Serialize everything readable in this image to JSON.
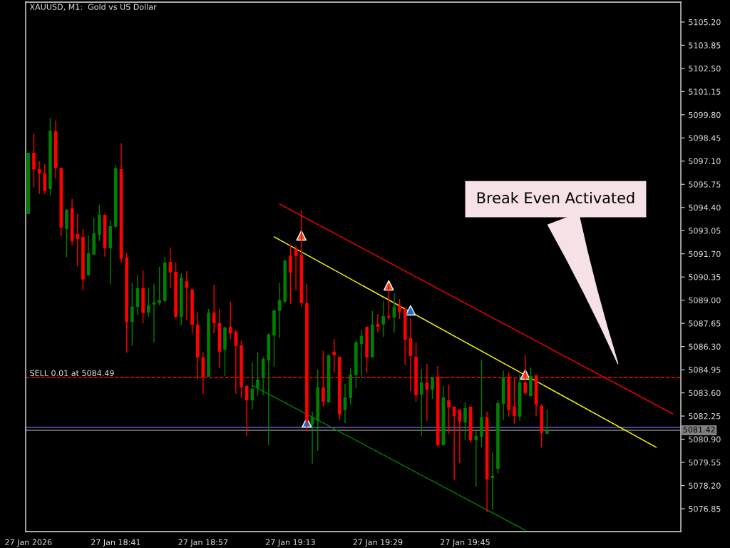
{
  "chart_data": {
    "type": "candlestick",
    "title": "XAUUSD, M1:  Gold vs US Dollar",
    "categories": [
      "27 Jan 2026",
      null,
      null,
      null,
      null,
      null,
      null,
      null,
      null,
      null,
      null,
      null,
      null,
      null,
      null,
      null,
      "27 Jan 18:41",
      null,
      null,
      null,
      null,
      null,
      null,
      null,
      null,
      null,
      null,
      null,
      null,
      null,
      null,
      null,
      "27 Jan 18:57",
      null,
      null,
      null,
      null,
      null,
      null,
      null,
      null,
      null,
      null,
      null,
      null,
      null,
      null,
      null,
      "27 Jan 19:13",
      null,
      null,
      null,
      null,
      null,
      null,
      null,
      null,
      null,
      null,
      null,
      null,
      null,
      null,
      null,
      "27 Jan 19:29",
      null,
      null,
      null,
      null,
      null,
      null,
      null,
      null,
      null,
      null,
      null,
      null,
      null,
      null,
      null,
      "27 Jan 19:45",
      null,
      null,
      null,
      null,
      null,
      null,
      null,
      null,
      null,
      null,
      null,
      null,
      null,
      null,
      null,
      null,
      null,
      null,
      null,
      null,
      null,
      null,
      null,
      null,
      null,
      null,
      null,
      null,
      null,
      null,
      null,
      null,
      null,
      null,
      null,
      null,
      null,
      null,
      null
    ],
    "ohlc": [
      [
        5094.02,
        5097.59,
        5094.02,
        5097.59
      ],
      [
        5097.59,
        5098.69,
        5095.57,
        5096.61
      ],
      [
        5096.64,
        5097.09,
        5095.19,
        5096.39
      ],
      [
        5096.39,
        5096.93,
        5095.19,
        5095.36
      ],
      [
        5095.47,
        5099.63,
        5095.1,
        5098.88
      ],
      [
        5098.84,
        5099.46,
        5096.07,
        5096.69
      ],
      [
        5096.72,
        5096.72,
        5092.73,
        5093.23
      ],
      [
        5093.15,
        5094.3,
        5091.5,
        5094.27
      ],
      [
        5094.35,
        5094.89,
        5092.21,
        5092.45
      ],
      [
        5092.86,
        5094.02,
        5090.97,
        5092.56
      ],
      [
        5092.69,
        5093.15,
        5089.59,
        5090.21
      ],
      [
        5090.45,
        5092.77,
        5090.45,
        5091.74
      ],
      [
        5091.65,
        5093.81,
        5091.65,
        5092.9
      ],
      [
        5092.81,
        5094.56,
        5092.45,
        5093.98
      ],
      [
        5093.98,
        5093.98,
        5091.53,
        5092.03
      ],
      [
        5092.03,
        5093.69,
        5089.92,
        5093.31
      ],
      [
        5093.28,
        5096.85,
        5093.19,
        5096.68
      ],
      [
        5096.64,
        5098.13,
        5091.2,
        5091.41
      ],
      [
        5091.49,
        5091.74,
        5085.94,
        5087.72
      ],
      [
        5087.73,
        5090.03,
        5086.36,
        5088.63
      ],
      [
        5088.6,
        5090.49,
        5088.13,
        5089.7
      ],
      [
        5089.7,
        5090.74,
        5087.66,
        5088.25
      ],
      [
        5088.27,
        5089.74,
        5088.05,
        5088.7
      ],
      [
        5088.75,
        5089.95,
        5086.51,
        5088.87
      ],
      [
        5088.83,
        5090.94,
        5088.7,
        5089.0
      ],
      [
        5088.95,
        5091.53,
        5088.91,
        5091.19
      ],
      [
        5091.23,
        5092.07,
        5089.71,
        5090.62
      ],
      [
        5090.65,
        5091.19,
        5087.95,
        5088.03
      ],
      [
        5088.03,
        5090.57,
        5087.54,
        5090.32
      ],
      [
        5090.11,
        5090.69,
        5087.83,
        5089.71
      ],
      [
        5089.61,
        5089.65,
        5087.07,
        5087.57
      ],
      [
        5087.57,
        5088.33,
        5084.38,
        5085.67
      ],
      [
        5085.67,
        5085.96,
        5083.54,
        5084.54
      ],
      [
        5084.54,
        5088.49,
        5084.54,
        5088.28
      ],
      [
        5088.28,
        5089.9,
        5087.07,
        5087.66
      ],
      [
        5087.66,
        5088.49,
        5085.04,
        5086.0
      ],
      [
        5086.12,
        5087.45,
        5084.58,
        5087.41
      ],
      [
        5087.45,
        5088.91,
        5086.74,
        5087.07
      ],
      [
        5087.16,
        5087.28,
        5083.54,
        5086.33
      ],
      [
        5086.37,
        5086.66,
        5083.3,
        5083.92
      ],
      [
        5084.0,
        5084.04,
        5081.09,
        5083.17
      ],
      [
        5083.17,
        5085.37,
        5082.63,
        5083.84
      ],
      [
        5083.88,
        5085.96,
        5083.42,
        5084.38
      ],
      [
        5084.5,
        5085.71,
        5083.46,
        5085.58
      ],
      [
        5085.5,
        5087.07,
        5080.55,
        5087.0
      ],
      [
        5086.95,
        5088.41,
        5085.12,
        5088.41
      ],
      [
        5088.37,
        5089.99,
        5086.79,
        5089.0
      ],
      [
        5088.91,
        5091.32,
        5088.87,
        5091.32
      ],
      [
        5091.57,
        5092.19,
        5088.79,
        5090.61
      ],
      [
        5091.98,
        5092.19,
        5089.57,
        5091.57
      ],
      [
        5091.65,
        5094.23,
        5088.62,
        5088.83
      ],
      [
        5088.83,
        5089.95,
        5081.34,
        5081.97
      ],
      [
        5081.76,
        5082.51,
        5079.48,
        5082.18
      ],
      [
        5082.01,
        5084.96,
        5080.23,
        5083.92
      ],
      [
        5083.92,
        5086.04,
        5082.8,
        5083.09
      ],
      [
        5083.04,
        5085.83,
        5083.04,
        5085.79
      ],
      [
        5086.0,
        5086.74,
        5084.78,
        5085.79
      ],
      [
        5085.71,
        5085.71,
        5082.01,
        5082.34
      ],
      [
        5082.59,
        5084.13,
        5081.84,
        5083.34
      ],
      [
        5083.3,
        5085.04,
        5082.93,
        5084.67
      ],
      [
        5084.63,
        5086.66,
        5083.88,
        5086.54
      ],
      [
        5086.45,
        5087.28,
        5084.5,
        5086.91
      ],
      [
        5087.45,
        5087.45,
        5084.78,
        5085.67
      ],
      [
        5085.67,
        5088.37,
        5085.67,
        5087.58
      ],
      [
        5087.62,
        5088.2,
        5087.12,
        5087.45
      ],
      [
        5087.58,
        5088.95,
        5086.87,
        5088.08
      ],
      [
        5088.08,
        5089.86,
        5087.87,
        5088.0
      ],
      [
        5088.0,
        5089.41,
        5087.12,
        5088.62
      ],
      [
        5088.66,
        5089.07,
        5087.91,
        5088.33
      ],
      [
        5088.49,
        5088.58,
        5085.21,
        5086.7
      ],
      [
        5086.79,
        5087.95,
        5083.71,
        5085.75
      ],
      [
        5085.71,
        5086.54,
        5083.09,
        5083.46
      ],
      [
        5083.5,
        5084.99,
        5081.09,
        5084.21
      ],
      [
        5084.21,
        5085.29,
        5081.97,
        5083.79
      ],
      [
        5083.79,
        5084.54,
        5083.25,
        5084.54
      ],
      [
        5084.54,
        5085.17,
        5080.43,
        5080.55
      ],
      [
        5080.55,
        5084.0,
        5080.55,
        5083.34
      ],
      [
        5083.17,
        5084.09,
        5081.22,
        5082.75
      ],
      [
        5082.8,
        5082.8,
        5078.54,
        5082.26
      ],
      [
        5082.63,
        5082.63,
        5079.51,
        5081.93
      ],
      [
        5081.88,
        5083.04,
        5080.84,
        5082.71
      ],
      [
        5082.8,
        5082.8,
        5080.72,
        5080.84
      ],
      [
        5080.84,
        5081.38,
        5078.14,
        5081.09
      ],
      [
        5081.05,
        5085.54,
        5080.43,
        5082.18
      ],
      [
        5082.18,
        5082.51,
        5076.64,
        5078.56
      ],
      [
        5078.64,
        5080.14,
        5076.81,
        5078.77
      ],
      [
        5079.18,
        5083.17,
        5078.89,
        5083.0
      ],
      [
        5082.96,
        5084.88,
        5082.01,
        5084.5
      ],
      [
        5084.54,
        5084.79,
        5082.22,
        5082.59
      ],
      [
        5082.8,
        5084.5,
        5081.8,
        5082.26
      ],
      [
        5082.22,
        5084.67,
        5081.97,
        5084.21
      ],
      [
        5084.21,
        5085.79,
        5083.46,
        5083.59
      ],
      [
        5083.42,
        5085.08,
        5083.38,
        5084.58
      ],
      [
        5084.63,
        5084.63,
        5082.26,
        5082.93
      ],
      [
        5082.84,
        5082.96,
        5080.43,
        5081.26
      ],
      [
        5081.22,
        5082.63,
        5081.22,
        5081.42
      ],
      null,
      null,
      null,
      null,
      null,
      null,
      null,
      null,
      null,
      null,
      null,
      null,
      null,
      null,
      null,
      null,
      null,
      null,
      null,
      null,
      null,
      null,
      null,
      null
    ],
    "colors": [
      "#008000",
      "#ff0000",
      "#ff0000",
      "#ff0000",
      "#008000",
      "#ff0000",
      "#ff0000",
      "#008000",
      "#ff0000",
      "#ff0000",
      "#ff0000",
      "#008000",
      "#008000",
      "#008000",
      "#ff0000",
      "#008000",
      "#008000",
      "#ff0000",
      "#ff0000",
      "#008000",
      "#008000",
      "#ff0000",
      "#008000",
      "#008000",
      "#008000",
      "#008000",
      "#ff0000",
      "#ff0000",
      "#008000",
      "#ff0000",
      "#ff0000",
      "#ff0000",
      "#ff0000",
      "#008000",
      "#ff0000",
      "#ff0000",
      "#008000",
      "#ff0000",
      "#ff0000",
      "#ff0000",
      "#ff0000",
      "#008000",
      "#008000",
      "#008000",
      "#008000",
      "#008000",
      "#008000",
      "#008000",
      "#ff0000",
      "#ff0000",
      "#ff0000",
      "#ff0000",
      "#008000",
      "#008000",
      "#ff0000",
      "#008000",
      "#ff0000",
      "#ff0000",
      "#008000",
      "#008000",
      "#008000",
      "#008000",
      "#ff0000",
      "#008000",
      "#ff0000",
      "#008000",
      "#ff0000",
      "#008000",
      "#ff0000",
      "#ff0000",
      "#ff0000",
      "#ff0000",
      "#008000",
      "#ff0000",
      "#008000",
      "#ff0000",
      "#008000",
      "#ff0000",
      "#ff0000",
      "#ff0000",
      "#008000",
      "#ff0000",
      "#008000",
      "#008000",
      "#ff0000",
      "#008000",
      "#008000",
      "#008000",
      "#ff0000",
      "#ff0000",
      "#008000",
      "#ff0000",
      "#008000",
      "#ff0000",
      "#ff0000",
      "#008000",
      null,
      null,
      null,
      null,
      null,
      null,
      null,
      null,
      null,
      null,
      null,
      null,
      null,
      null,
      null,
      null,
      null,
      null,
      null,
      null,
      null,
      null,
      null,
      null
    ],
    "series": [
      {
        "type": "line",
        "color": "#ff0000",
        "values": [
          null,
          null,
          null,
          null,
          null,
          null,
          null,
          null,
          null,
          null,
          null,
          null,
          null,
          null,
          null,
          null,
          null,
          null,
          null,
          null,
          null,
          null,
          null,
          null,
          null,
          null,
          null,
          null,
          null,
          null,
          null,
          null,
          null,
          null,
          null,
          null,
          null,
          null,
          null,
          null,
          null,
          null,
          null,
          null,
          null,
          null,
          5094.6,
          null,
          null,
          null,
          null,
          null,
          null,
          null,
          null,
          null,
          null,
          null,
          null,
          null,
          null,
          null,
          null,
          null,
          null,
          null,
          null,
          null,
          null,
          null,
          null,
          null,
          null,
          null,
          null,
          null,
          null,
          null,
          null,
          null,
          null,
          null,
          null,
          null,
          null,
          null,
          null,
          null,
          null,
          null,
          null,
          null,
          null,
          null,
          null,
          null,
          null,
          null,
          null,
          null,
          null,
          null,
          null,
          null,
          null,
          null,
          null,
          null,
          null,
          null,
          null,
          null,
          null,
          null,
          null,
          null,
          null,
          null,
          5082.38,
          null
        ]
      },
      {
        "type": "line",
        "color": "#ffff00",
        "values": [
          null,
          null,
          null,
          null,
          null,
          null,
          null,
          null,
          null,
          null,
          null,
          null,
          null,
          null,
          null,
          null,
          null,
          null,
          null,
          null,
          null,
          null,
          null,
          null,
          null,
          null,
          null,
          null,
          null,
          null,
          null,
          null,
          null,
          null,
          null,
          null,
          null,
          null,
          null,
          null,
          null,
          null,
          null,
          null,
          null,
          5092.69,
          null,
          null,
          null,
          null,
          null,
          null,
          null,
          null,
          null,
          null,
          null,
          null,
          null,
          null,
          null,
          null,
          null,
          null,
          null,
          null,
          null,
          null,
          null,
          null,
          null,
          null,
          null,
          null,
          null,
          null,
          null,
          null,
          null,
          null,
          null,
          null,
          null,
          null,
          null,
          null,
          null,
          null,
          null,
          null,
          null,
          null,
          null,
          null,
          null,
          null,
          null,
          null,
          null,
          null,
          null,
          null,
          null,
          null,
          null,
          null,
          null,
          null,
          null,
          null,
          null,
          null,
          null,
          null,
          null,
          5080.43,
          null,
          null,
          null,
          null
        ]
      },
      {
        "type": "line",
        "color": "#008000",
        "values": [
          null,
          null,
          null,
          null,
          null,
          null,
          null,
          null,
          null,
          null,
          null,
          null,
          null,
          null,
          null,
          null,
          null,
          null,
          null,
          null,
          null,
          null,
          null,
          null,
          null,
          null,
          null,
          null,
          null,
          null,
          null,
          null,
          null,
          null,
          null,
          null,
          null,
          null,
          null,
          null,
          null,
          5084.04,
          null,
          null,
          null,
          null,
          null,
          null,
          null,
          null,
          null,
          null,
          null,
          null,
          null,
          null,
          null,
          null,
          null,
          null,
          null,
          null,
          null,
          null,
          null,
          null,
          null,
          null,
          null,
          null,
          null,
          null,
          null,
          null,
          null,
          null,
          null,
          null,
          null,
          null,
          null,
          null,
          null,
          null,
          null,
          null,
          null,
          null,
          null,
          null,
          null,
          5075.6,
          null,
          null,
          null,
          null,
          null,
          null,
          null,
          null,
          null,
          null,
          null,
          null,
          null,
          null,
          null,
          null,
          null,
          null,
          null,
          null,
          null,
          null,
          null,
          null,
          null,
          null,
          null,
          null
        ]
      },
      {
        "type": "scatter",
        "color": "#e8502a",
        "marker": "triangle",
        "values": [
          null,
          null,
          null,
          null,
          null,
          null,
          null,
          null,
          null,
          null,
          null,
          null,
          null,
          null,
          null,
          null,
          null,
          null,
          null,
          null,
          null,
          null,
          null,
          null,
          null,
          null,
          null,
          null,
          null,
          null,
          null,
          null,
          null,
          null,
          null,
          null,
          null,
          null,
          null,
          null,
          null,
          null,
          null,
          null,
          null,
          null,
          null,
          null,
          null,
          null,
          5092.77,
          null,
          null,
          null,
          null,
          null,
          null,
          null,
          null,
          null,
          null,
          null,
          null,
          null,
          null,
          null,
          5089.86,
          null,
          null,
          null,
          null,
          null,
          null,
          null,
          null,
          null,
          null,
          null,
          null,
          null,
          null,
          null,
          null,
          null,
          null,
          null,
          null,
          null,
          null,
          null,
          null,
          5084.67,
          null,
          null,
          null,
          null,
          null,
          null,
          null,
          null,
          null,
          null,
          null,
          null,
          null,
          null,
          null,
          null,
          null,
          null,
          null,
          null,
          null,
          null,
          null,
          null,
          null,
          null,
          null,
          null
        ]
      },
      {
        "type": "scatter",
        "color": "#1e6fc0",
        "marker": "triangle",
        "values": [
          null,
          null,
          null,
          null,
          null,
          null,
          null,
          null,
          null,
          null,
          null,
          null,
          null,
          null,
          null,
          null,
          null,
          null,
          null,
          null,
          null,
          null,
          null,
          null,
          null,
          null,
          null,
          null,
          null,
          null,
          null,
          null,
          null,
          null,
          null,
          null,
          null,
          null,
          null,
          null,
          null,
          null,
          null,
          null,
          null,
          null,
          null,
          null,
          null,
          null,
          null,
          5081.88,
          null,
          null,
          null,
          null,
          null,
          null,
          null,
          null,
          null,
          null,
          null,
          null,
          null,
          null,
          null,
          null,
          null,
          null,
          5088.41,
          null,
          null,
          null,
          null,
          null,
          null,
          null,
          null,
          null,
          null,
          null,
          null,
          null,
          null,
          null,
          null,
          null,
          null,
          null,
          null,
          null,
          null,
          null,
          null,
          null,
          null,
          null,
          null,
          null,
          null,
          null,
          null,
          null,
          null,
          null,
          null,
          null,
          null,
          null,
          null,
          null,
          null,
          null,
          null,
          null,
          null,
          null,
          null,
          null
        ]
      }
    ],
    "ref_lines": [
      {
        "axis": "y",
        "value": 5084.49,
        "label": "SELL 0.01 at 5084.49",
        "color": "#ff0000",
        "line_style": "dashed"
      },
      {
        "axis": "y",
        "value": 5081.59,
        "color": "#6a5acd",
        "line_style": "solid"
      },
      {
        "axis": "y",
        "value": 5081.42,
        "label": "5081.42",
        "color": "#808080",
        "line_style": "solid"
      }
    ],
    "annotations": [
      "Break Even Activated"
    ],
    "ylim": [
      5075.52,
      5106.36
    ],
    "yticks": [
      {
        "value": 5076.85,
        "label": "5076.85"
      },
      {
        "value": 5078.2,
        "label": "5078.20"
      },
      {
        "value": 5079.55,
        "label": "5079.55"
      },
      {
        "value": 5080.9,
        "label": "5080.90"
      },
      {
        "value": 5082.25,
        "label": "5082.25"
      },
      {
        "value": 5083.6,
        "label": "5083.60"
      },
      {
        "value": 5084.95,
        "label": "5084.95"
      },
      {
        "value": 5086.3,
        "label": "5086.30"
      },
      {
        "value": 5087.65,
        "label": "5087.65"
      },
      {
        "value": 5089.0,
        "label": "5089.00"
      },
      {
        "value": 5090.35,
        "label": "5090.35"
      },
      {
        "value": 5091.7,
        "label": "5091.70"
      },
      {
        "value": 5093.05,
        "label": "5093.05"
      },
      {
        "value": 5094.4,
        "label": "5094.40"
      },
      {
        "value": 5095.75,
        "label": "5095.75"
      },
      {
        "value": 5097.1,
        "label": "5097.10"
      },
      {
        "value": 5098.45,
        "label": "5098.45"
      },
      {
        "value": 5099.8,
        "label": "5099.80"
      },
      {
        "value": 5101.15,
        "label": "5101.15"
      },
      {
        "value": 5102.5,
        "label": "5102.50"
      },
      {
        "value": 5103.85,
        "label": "5103.85"
      },
      {
        "value": 5105.2,
        "label": "5105.20"
      }
    ],
    "grid": false,
    "legend": false
  }
}
